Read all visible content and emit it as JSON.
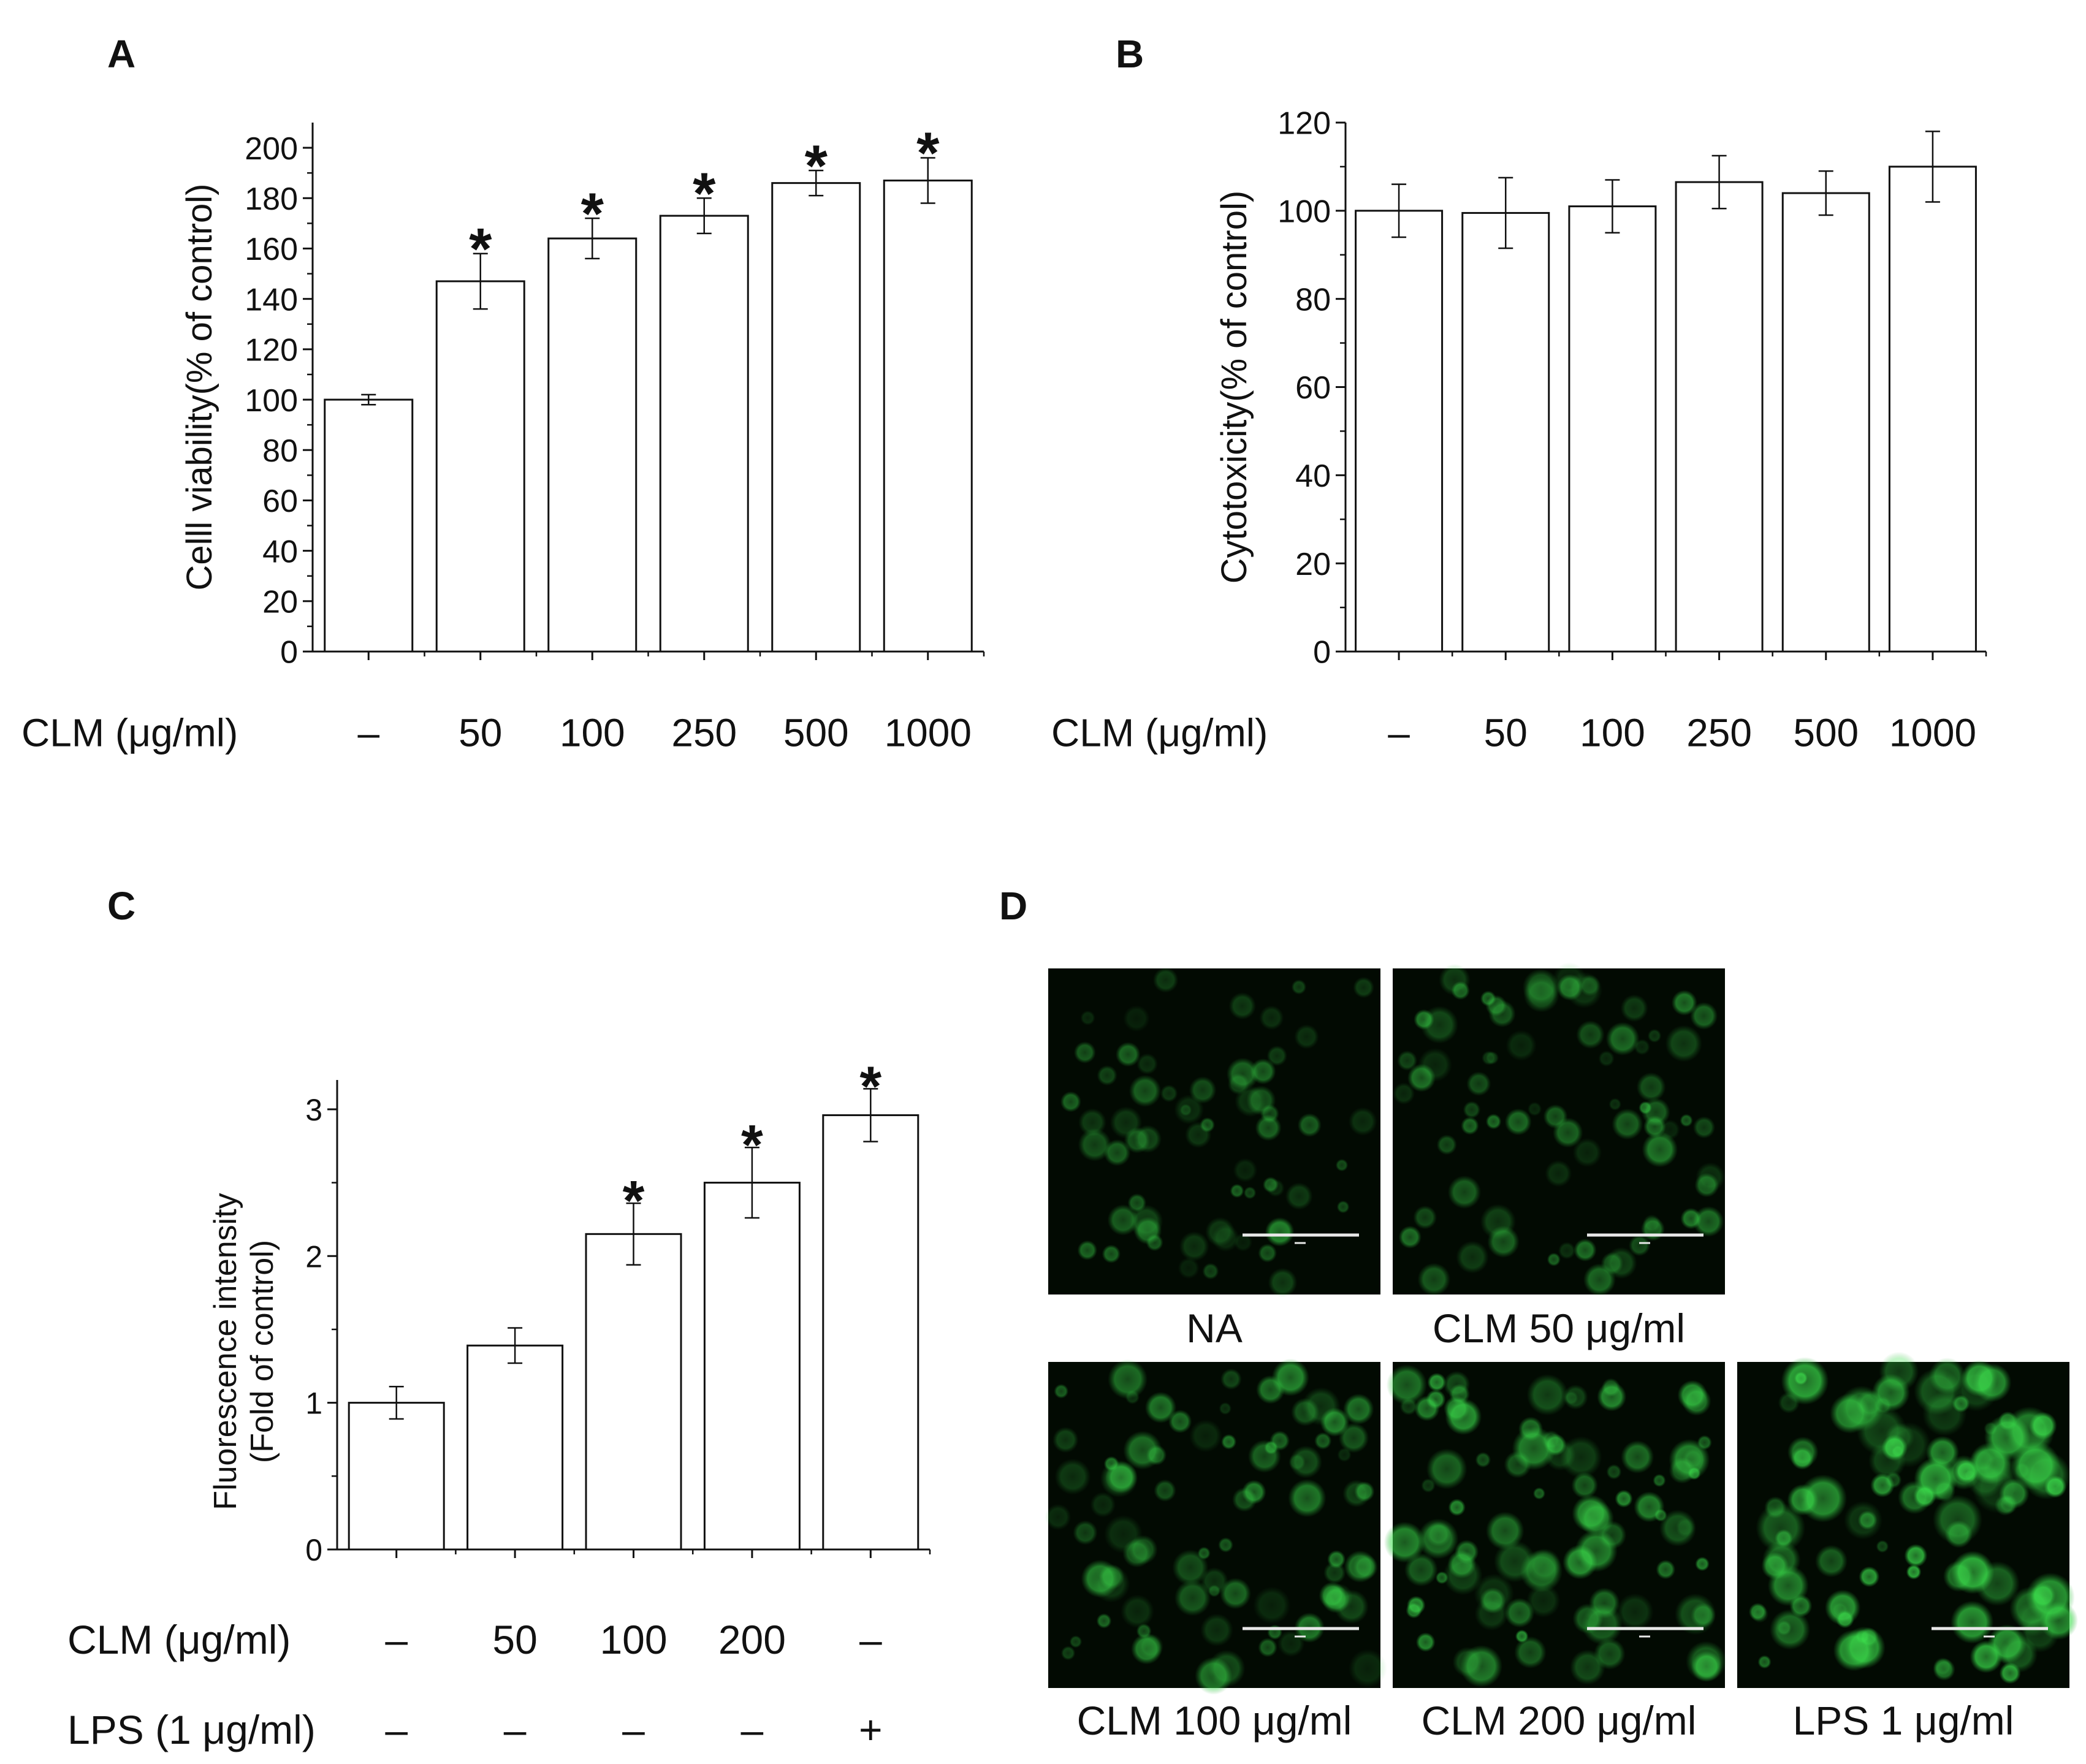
{
  "panels": {
    "A": {
      "letter": "A"
    },
    "B": {
      "letter": "B"
    },
    "C": {
      "letter": "C"
    },
    "D": {
      "letter": "D"
    }
  },
  "chart_data": [
    {
      "panel": "A",
      "type": "bar",
      "ylabel": "Celll viability(% of control)",
      "ylim": [
        0,
        210
      ],
      "yticks": [
        0,
        20,
        40,
        60,
        80,
        100,
        120,
        140,
        160,
        180,
        200
      ],
      "row_labels": [
        "CLM (μg/ml)"
      ],
      "categories": [
        "–",
        "50",
        "100",
        "250",
        "500",
        "1000"
      ],
      "values": [
        100,
        147,
        164,
        173,
        186,
        187
      ],
      "errors": [
        2,
        11,
        8,
        7,
        5,
        9
      ],
      "significance": [
        "",
        "*",
        "*",
        "*",
        "*",
        "*"
      ]
    },
    {
      "panel": "B",
      "type": "bar",
      "ylabel": "Cytotoxicity(% of control)",
      "ylim": [
        0,
        120
      ],
      "yticks": [
        0,
        20,
        40,
        60,
        80,
        100,
        120
      ],
      "row_labels": [
        "CLM (μg/ml)"
      ],
      "categories": [
        "–",
        "50",
        "100",
        "250",
        "500",
        "1000"
      ],
      "values": [
        100,
        99.5,
        101,
        106.5,
        104,
        110
      ],
      "errors": [
        6,
        8,
        6,
        6,
        5,
        8
      ],
      "significance": [
        "",
        "",
        "",
        "",
        "",
        ""
      ]
    },
    {
      "panel": "C",
      "type": "bar",
      "ylabel": [
        "Fluorescence intensity",
        "(Fold of control)"
      ],
      "ylim": [
        0,
        3.2
      ],
      "yticks": [
        0,
        1,
        2,
        3
      ],
      "row_labels": [
        "CLM (μg/ml)",
        "LPS (1 μg/ml)"
      ],
      "categories": [
        "–",
        "50",
        "100",
        "200",
        "–"
      ],
      "categories_row2": [
        "–",
        "–",
        "–",
        "–",
        "+"
      ],
      "values": [
        1.0,
        1.39,
        2.15,
        2.5,
        2.96
      ],
      "errors": [
        0.11,
        0.12,
        0.21,
        0.24,
        0.18
      ],
      "significance": [
        "",
        "",
        "*",
        "*",
        "*"
      ]
    }
  ],
  "micrographs": [
    {
      "caption": "NA",
      "intensity": 0.35,
      "scale_bar": "scale-bar"
    },
    {
      "caption": "CLM 50 μg/ml",
      "intensity": 0.5,
      "scale_bar": "scale-bar"
    },
    {
      "caption": "CLM 100 μg/ml",
      "intensity": 0.6,
      "scale_bar": "scale-bar"
    },
    {
      "caption": "CLM 200 μg/ml",
      "intensity": 0.72,
      "scale_bar": "scale-bar"
    },
    {
      "caption": "LPS 1 μg/ml",
      "intensity": 0.95,
      "scale_bar": "scale-bar"
    }
  ],
  "colors": {
    "bar_fill": "#ffffff",
    "stroke": "#111111",
    "micrograph_bg": "#020a02",
    "cell_green": "#39d84a"
  }
}
